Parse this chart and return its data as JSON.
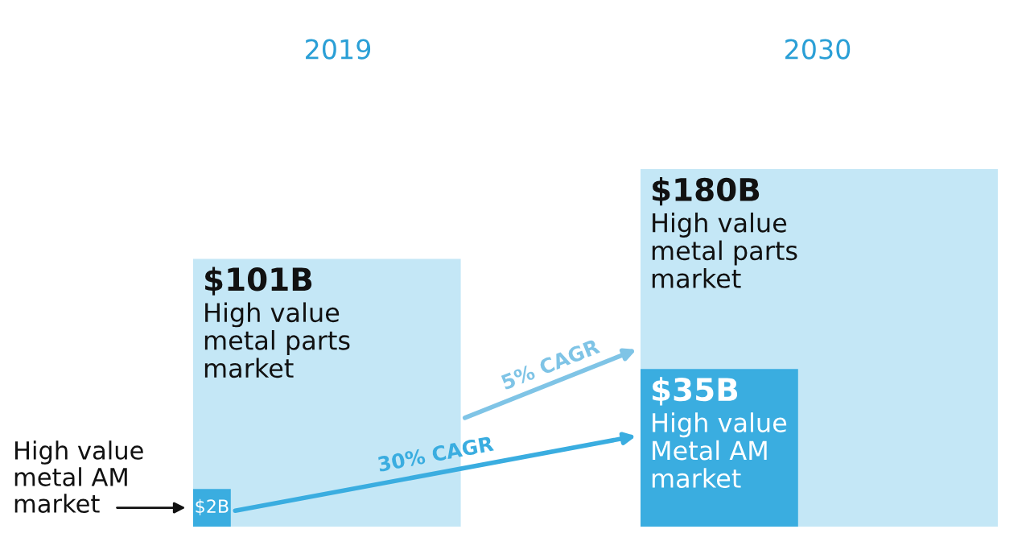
{
  "chart_data": {
    "type": "other",
    "categories": [
      "2019",
      "2030"
    ],
    "series": [
      {
        "name": "High value metal parts market",
        "color": "#c4e7f6",
        "values": [
          101,
          180
        ],
        "value_labels": [
          "$101B",
          "$180B"
        ]
      },
      {
        "color": "#3aade0",
        "values": [
          2,
          35
        ],
        "value_labels": [
          "$2B",
          "$35B"
        ]
      }
    ],
    "annotations": [
      "High value metal AM market",
      "High value Metal AM market",
      "5% CAGR",
      "30% CAGR"
    ]
  }
}
